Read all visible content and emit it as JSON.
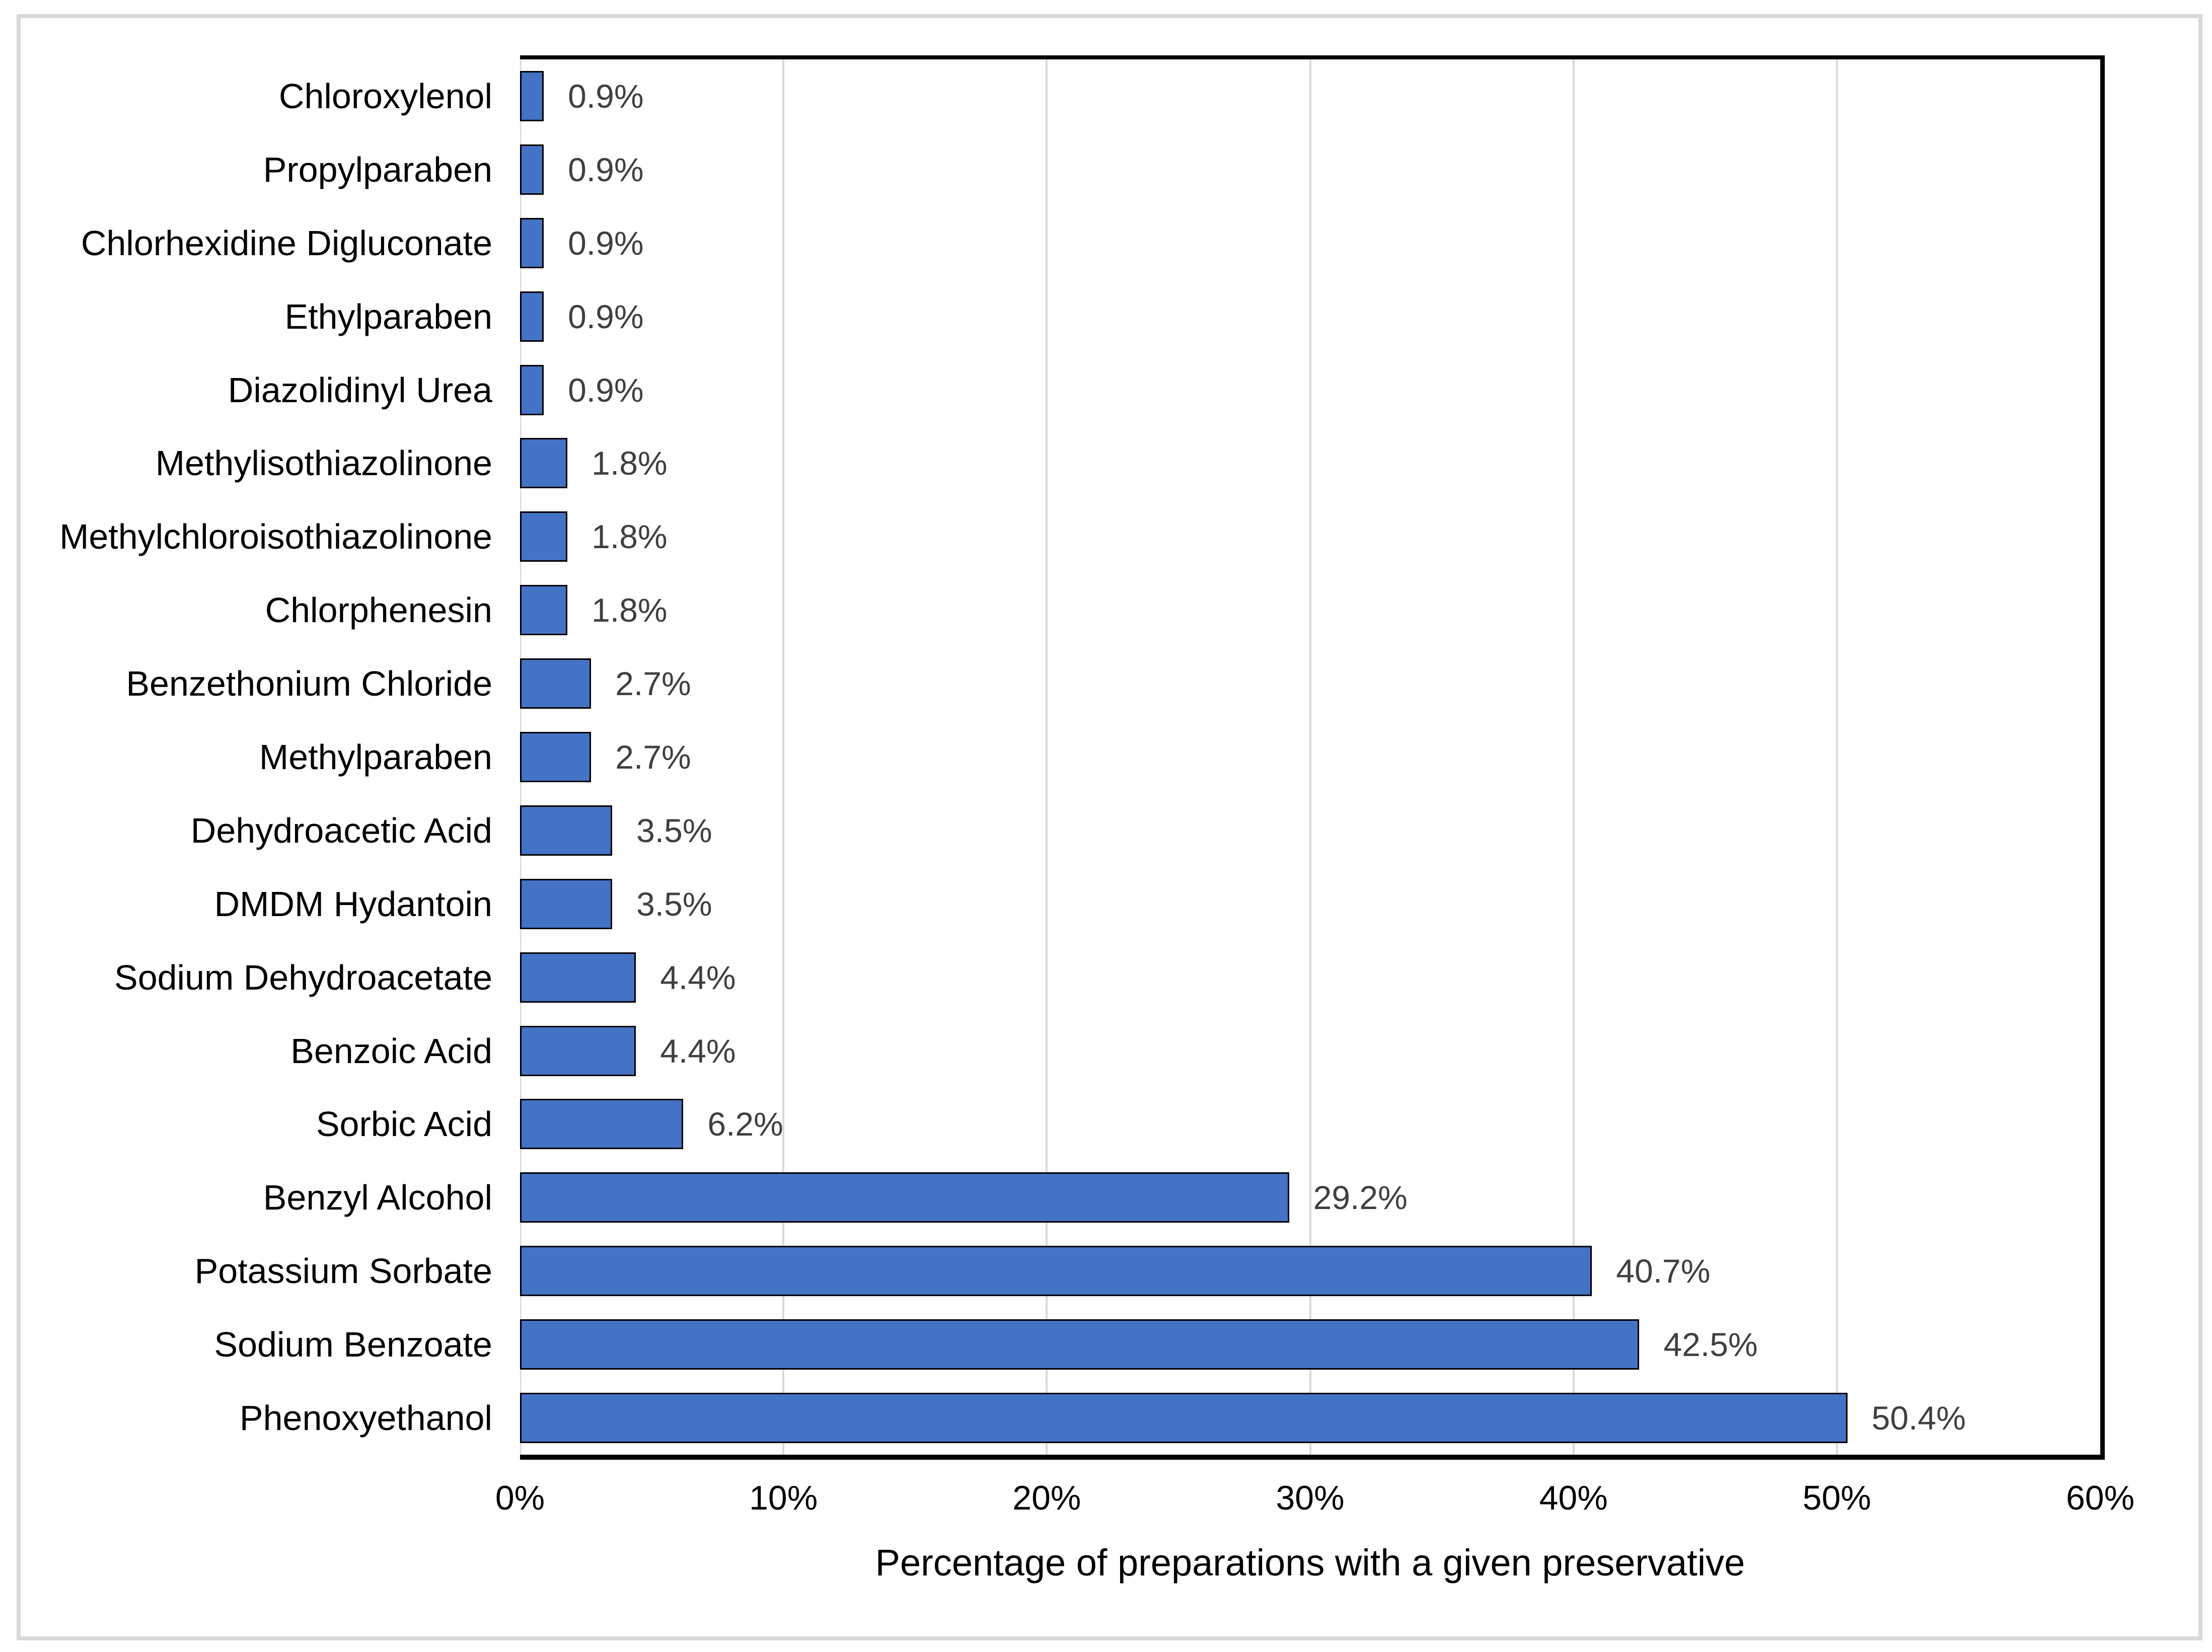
{
  "chart_data": {
    "type": "bar",
    "orientation": "horizontal",
    "title": "",
    "xlabel": "Percentage of preparations with a given preservative",
    "ylabel": "",
    "xlim": [
      0,
      60
    ],
    "grid": "vertical",
    "legend": "none",
    "categories": [
      "Chloroxylenol",
      "Propylparaben",
      "Chlorhexidine Digluconate",
      "Ethylparaben",
      "Diazolidinyl Urea",
      "Methylisothiazolinone",
      "Methylchloroisothiazolinone",
      "Chlorphenesin",
      "Benzethonium Chloride",
      "Methylparaben",
      "Dehydroacetic Acid",
      "DMDM Hydantoin",
      "Sodium Dehydroacetate",
      "Benzoic Acid",
      "Sorbic Acid",
      "Benzyl Alcohol",
      "Potassium Sorbate",
      "Sodium Benzoate",
      "Phenoxyethanol"
    ],
    "values": [
      0.9,
      0.9,
      0.9,
      0.9,
      0.9,
      1.8,
      1.8,
      1.8,
      2.7,
      2.7,
      3.5,
      3.5,
      4.4,
      4.4,
      6.2,
      29.2,
      40.7,
      42.5,
      50.4
    ],
    "value_labels": [
      "0.9%",
      "0.9%",
      "0.9%",
      "0.9%",
      "0.9%",
      "1.8%",
      "1.8%",
      "1.8%",
      "2.7%",
      "2.7%",
      "3.5%",
      "3.5%",
      "4.4%",
      "4.4%",
      "6.2%",
      "29.2%",
      "40.7%",
      "42.5%",
      "50.4%"
    ],
    "x_tick_labels": [
      "0%",
      "10%",
      "20%",
      "30%",
      "40%",
      "50%",
      "60%"
    ],
    "colors": {
      "bar_fill": "#4472C4",
      "bar_border": "#000000",
      "gridline": "#D9D9D9",
      "zero_line": "#D9D9D9",
      "plot_border": "#000000",
      "value_label": "#3F3F3F",
      "figure_border": "#D9D9D9",
      "background": "#FFFFFF"
    }
  }
}
